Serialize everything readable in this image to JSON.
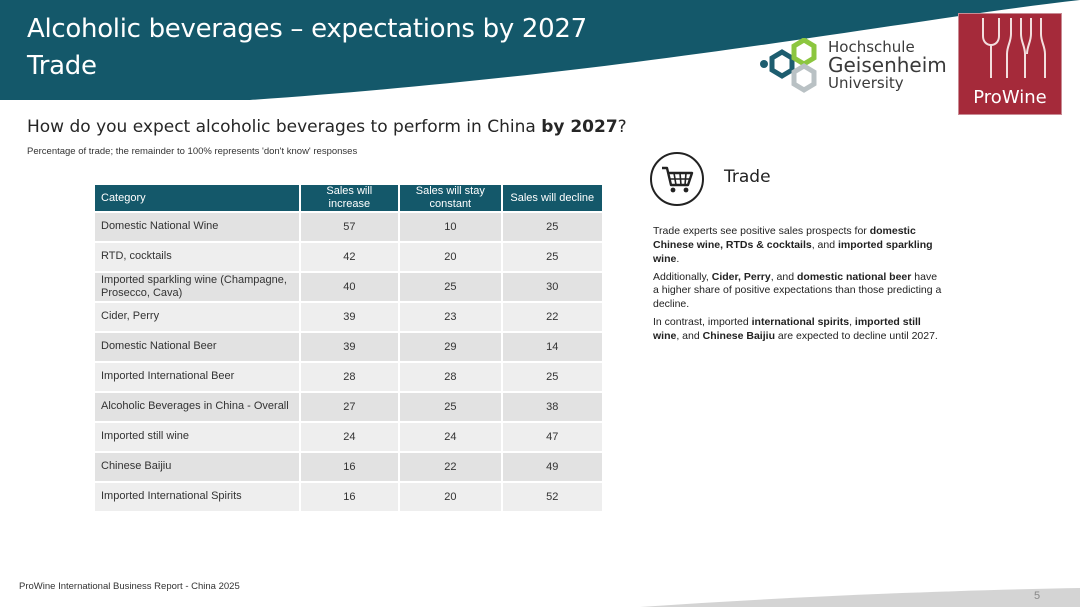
{
  "header": {
    "title_line1": "Alcoholic beverages – expectations by 2027",
    "title_line2": "Trade",
    "band_color": "#14586a"
  },
  "logos": {
    "hgu": {
      "line1": "Hochschule",
      "line2": "Geisenheim",
      "line3": "University"
    },
    "prowine": {
      "text": "ProWine",
      "color": "#a52a3a"
    }
  },
  "question": {
    "text": "How do you expect alcoholic beverages to perform in China ",
    "bold": "by 2027",
    "end": "?"
  },
  "subtitle": "Percentage of trade; the remainder to 100% represents 'don't know' responses",
  "table": {
    "headers": [
      "Category",
      "Sales will increase",
      "Sales will stay constant",
      "Sales will decline"
    ],
    "rows": [
      {
        "category": "Domestic National Wine",
        "increase": "57",
        "constant": "10",
        "decline": "25"
      },
      {
        "category": "RTD, cocktails",
        "increase": "42",
        "constant": "20",
        "decline": "25"
      },
      {
        "category": "Imported sparkling wine (Champagne, Prosecco, Cava)",
        "increase": "40",
        "constant": "25",
        "decline": "30"
      },
      {
        "category": "Cider, Perry",
        "increase": "39",
        "constant": "23",
        "decline": "22"
      },
      {
        "category": "Domestic National Beer",
        "increase": "39",
        "constant": "29",
        "decline": "14"
      },
      {
        "category": "Imported International Beer",
        "increase": "28",
        "constant": "28",
        "decline": "25"
      },
      {
        "category": "Alcoholic Beverages in China - Overall",
        "increase": "27",
        "constant": "25",
        "decline": "38"
      },
      {
        "category": "Imported still wine",
        "increase": "24",
        "constant": "24",
        "decline": "47"
      },
      {
        "category": "Chinese Baijiu",
        "increase": "16",
        "constant": "22",
        "decline": "49"
      },
      {
        "category": "Imported International Spirits",
        "increase": "16",
        "constant": "20",
        "decline": "52"
      }
    ]
  },
  "side_panel": {
    "icon": "shopping-cart-icon",
    "label": "Trade",
    "p1": {
      "a": "Trade experts see positive sales prospects for ",
      "b1": "domestic Chinese wine, RTDs & cocktails",
      "c": ", and ",
      "b2": "imported sparkling wine",
      "d": "."
    },
    "p2": {
      "a": "Additionally, ",
      "b1": "Cider, Perry",
      "c": ", and ",
      "b2": "domestic national beer",
      "d": " have a higher share of positive expectations than those predicting a decline."
    },
    "p3": {
      "a": "In contrast, imported ",
      "b1": "international spirits",
      "c": ", ",
      "b2": "imported still wine",
      "d": ", and ",
      "b3": "Chinese Baijiu",
      "e": " are expected to decline until 2027."
    }
  },
  "footer": {
    "text": "ProWine International Business Report - China 2025",
    "page": "5"
  }
}
